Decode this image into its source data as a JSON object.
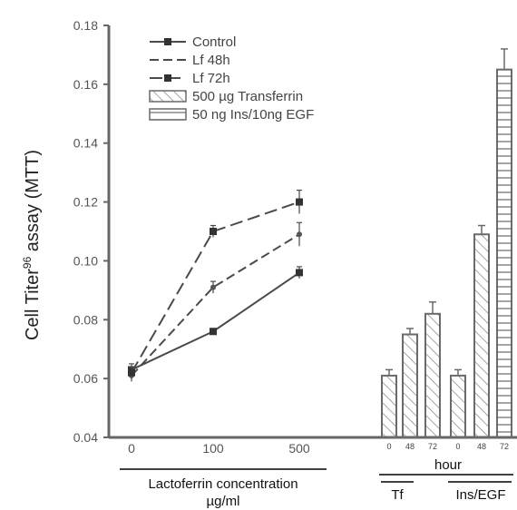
{
  "chart_data": {
    "type": "line+bar",
    "ylabel": "Cell Titer",
    "ylabel_superscript": "96",
    "ylabel_suffix": " assay (MTT)",
    "ylim": [
      0.04,
      0.18
    ],
    "yticks": [
      "0.04",
      "0.06",
      "0.08",
      "0.10",
      "0.12",
      "0.14",
      "0.16",
      "0.18"
    ],
    "line_x_categories": [
      "0",
      "100",
      "500"
    ],
    "line_series": [
      {
        "name": "Control",
        "values": [
          0.063,
          0.076,
          0.096
        ],
        "errors": [
          0.002,
          0.001,
          0.002
        ]
      },
      {
        "name": "Lf 48h",
        "values": [
          0.061,
          0.091,
          0.109
        ],
        "errors": [
          0.002,
          0.002,
          0.004
        ]
      },
      {
        "name": "Lf 72h",
        "values": [
          0.062,
          0.11,
          0.12
        ],
        "errors": [
          0.002,
          0.002,
          0.004
        ]
      }
    ],
    "bar_groups": [
      {
        "name": "500 µg Transferrin",
        "group_label": "Tf",
        "hours": [
          "0",
          "48",
          "72"
        ],
        "values": [
          0.061,
          0.075,
          0.082
        ],
        "errors": [
          0.002,
          0.002,
          0.004
        ]
      },
      {
        "name": "50 ng Ins/10ng EGF",
        "group_label": "Ins/EGF",
        "hours": [
          "0",
          "48",
          "72"
        ],
        "values": [
          0.061,
          0.109,
          0.165
        ],
        "errors": [
          0.002,
          0.003,
          0.007
        ]
      }
    ],
    "xlabel_lines": [
      "Lactoferrin concentration",
      "µg/ml"
    ],
    "hour_label": "hour",
    "legend_position": "top-left"
  },
  "colors": {
    "line": "#4a4a4a",
    "bar_stroke": "#6a6a6a",
    "axis": "#666666"
  }
}
